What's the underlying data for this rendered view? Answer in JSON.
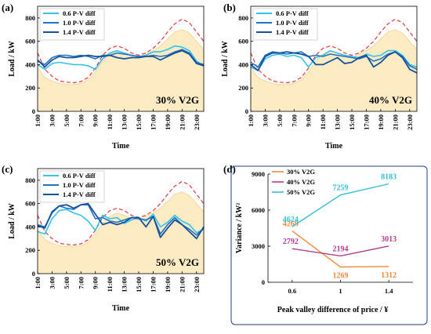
{
  "colors": {
    "series_06": "#33C3EA",
    "series_10": "#1F74C4",
    "series_14": "#17509C",
    "fill": "#FCEBC3",
    "fill_stroke": "#F2D99A",
    "dashed": "#E03A3A",
    "dark_blue_border": "#1F3F84",
    "v2g30": "#F08A3C",
    "v2g40": "#B23C93",
    "v2g50": "#33BFD8"
  },
  "chart_data": [
    {
      "panel": "(a)",
      "type": "area",
      "annotation": "30% V2G",
      "ylabel": "Load / kW",
      "xlabel": "Time",
      "ylim": [
        0,
        900
      ],
      "yticks": [
        0,
        200,
        400,
        600,
        800
      ],
      "xticks": [
        "1:00",
        "3:00",
        "5:00",
        "7:00",
        "9:00",
        "11:00",
        "13:00",
        "15:00",
        "17:00",
        "19:00",
        "21:00",
        "23:00"
      ],
      "x": [
        1,
        2,
        3,
        4,
        5,
        6,
        7,
        8,
        9,
        10,
        11,
        12,
        13,
        14,
        15,
        16,
        17,
        18,
        19,
        20,
        21,
        22,
        23,
        24
      ],
      "base_load": [
        380,
        290,
        260,
        240,
        230,
        230,
        240,
        270,
        340,
        430,
        490,
        520,
        500,
        470,
        460,
        490,
        520,
        560,
        620,
        680,
        700,
        670,
        600,
        530
      ],
      "dashed_load": [
        500,
        360,
        300,
        260,
        250,
        245,
        255,
        290,
        370,
        480,
        540,
        560,
        540,
        500,
        480,
        500,
        540,
        600,
        680,
        750,
        790,
        760,
        680,
        600
      ],
      "series": [
        {
          "name": "0.6 P-V diff",
          "values": [
            400,
            360,
            410,
            420,
            410,
            400,
            400,
            390,
            360,
            450,
            500,
            520,
            500,
            480,
            470,
            480,
            510,
            510,
            530,
            560,
            550,
            520,
            430,
            390
          ]
        },
        {
          "name": "1.0 P-V diff",
          "values": [
            430,
            400,
            460,
            480,
            480,
            470,
            480,
            470,
            450,
            480,
            480,
            500,
            490,
            480,
            470,
            470,
            480,
            470,
            480,
            510,
            530,
            500,
            420,
            400
          ]
        },
        {
          "name": "1.4 P-V diff",
          "values": [
            440,
            380,
            440,
            470,
            460,
            460,
            470,
            480,
            470,
            470,
            480,
            460,
            450,
            460,
            460,
            470,
            470,
            440,
            470,
            500,
            520,
            490,
            410,
            390
          ]
        }
      ]
    },
    {
      "panel": "(b)",
      "type": "area",
      "annotation": "40% V2G",
      "ylabel": "Load / kW",
      "xlabel": "Time",
      "ylim": [
        0,
        900
      ],
      "yticks": [
        0,
        200,
        400,
        600,
        800
      ],
      "xticks": [
        "1:00",
        "3:00",
        "5:00",
        "7:00",
        "9:00",
        "11:00",
        "13:00",
        "15:00",
        "17:00",
        "19:00",
        "21:00",
        "23:00"
      ],
      "x": [
        1,
        2,
        3,
        4,
        5,
        6,
        7,
        8,
        9,
        10,
        11,
        12,
        13,
        14,
        15,
        16,
        17,
        18,
        19,
        20,
        21,
        22,
        23,
        24
      ],
      "base_load": [
        380,
        290,
        260,
        240,
        230,
        230,
        240,
        270,
        340,
        430,
        490,
        520,
        500,
        470,
        460,
        490,
        520,
        560,
        620,
        680,
        700,
        670,
        600,
        530
      ],
      "dashed_load": [
        500,
        360,
        300,
        260,
        250,
        245,
        255,
        290,
        370,
        480,
        540,
        560,
        540,
        500,
        480,
        500,
        540,
        600,
        680,
        750,
        790,
        760,
        680,
        600
      ],
      "series": [
        {
          "name": "0.6 P-V diff",
          "values": [
            380,
            350,
            450,
            480,
            490,
            470,
            480,
            460,
            380,
            460,
            480,
            520,
            500,
            480,
            470,
            460,
            490,
            470,
            480,
            520,
            520,
            480,
            400,
            380
          ]
        },
        {
          "name": "1.0 P-V diff",
          "values": [
            420,
            380,
            480,
            510,
            500,
            490,
            500,
            510,
            470,
            480,
            470,
            490,
            480,
            470,
            460,
            450,
            470,
            430,
            450,
            490,
            510,
            470,
            390,
            360
          ]
        },
        {
          "name": "1.4 P-V diff",
          "values": [
            400,
            350,
            470,
            500,
            500,
            510,
            500,
            490,
            470,
            400,
            400,
            430,
            460,
            410,
            420,
            460,
            480,
            380,
            420,
            480,
            510,
            460,
            360,
            330
          ]
        }
      ]
    },
    {
      "panel": "(c)",
      "type": "area",
      "annotation": "50% V2G",
      "ylabel": "Load / kW",
      "xlabel": "Time",
      "ylim": [
        0,
        900
      ],
      "yticks": [
        0,
        200,
        400,
        600,
        800
      ],
      "xticks": [
        "1:00",
        "3:00",
        "5:00",
        "7:00",
        "9:00",
        "11:00",
        "13:00",
        "15:00",
        "17:00",
        "19:00",
        "21:00",
        "23:00"
      ],
      "x": [
        1,
        2,
        3,
        4,
        5,
        6,
        7,
        8,
        9,
        10,
        11,
        12,
        13,
        14,
        15,
        16,
        17,
        18,
        19,
        20,
        21,
        22,
        23,
        24
      ],
      "base_load": [
        380,
        290,
        260,
        240,
        230,
        230,
        240,
        270,
        340,
        430,
        490,
        520,
        500,
        470,
        460,
        490,
        520,
        560,
        620,
        680,
        700,
        670,
        600,
        530
      ],
      "dashed_load": [
        500,
        360,
        300,
        260,
        250,
        245,
        255,
        290,
        370,
        480,
        540,
        560,
        540,
        500,
        480,
        500,
        540,
        600,
        680,
        750,
        790,
        760,
        680,
        600
      ],
      "series": [
        {
          "name": "0.6 P-V diff",
          "values": [
            360,
            340,
            470,
            540,
            550,
            520,
            500,
            450,
            370,
            500,
            470,
            480,
            430,
            460,
            480,
            450,
            510,
            400,
            440,
            500,
            450,
            420,
            350,
            380
          ]
        },
        {
          "name": "1.0 P-V diff",
          "values": [
            420,
            400,
            520,
            580,
            560,
            550,
            590,
            590,
            470,
            480,
            450,
            440,
            460,
            480,
            470,
            460,
            490,
            340,
            420,
            480,
            420,
            380,
            330,
            390
          ]
        },
        {
          "name": "1.4 P-V diff",
          "values": [
            410,
            390,
            530,
            580,
            590,
            560,
            590,
            600,
            510,
            420,
            440,
            420,
            440,
            480,
            480,
            400,
            490,
            310,
            390,
            460,
            420,
            360,
            300,
            400
          ]
        }
      ]
    },
    {
      "panel": "(d)",
      "type": "line",
      "xlabel": "Peak valley difference of price / ¥",
      "ylabel": "Variance / kW²",
      "x": [
        0.6,
        1.0,
        1.4
      ],
      "xticks": [
        "0.6",
        "1",
        "1.4"
      ],
      "ylim": [
        0,
        9000
      ],
      "yticks": [
        0,
        3000,
        6000,
        9000
      ],
      "series": [
        {
          "name": "30% V2G",
          "values": [
            4269,
            1269,
            1312
          ],
          "labels": [
            "4269",
            "1269",
            "1312"
          ]
        },
        {
          "name": "40% V2G",
          "values": [
            2792,
            2194,
            3013
          ],
          "labels": [
            "2792",
            "2194",
            "3013"
          ]
        },
        {
          "name": "50% V2G",
          "values": [
            4624,
            7259,
            8183
          ],
          "labels": [
            "4624",
            "7259",
            "8183"
          ]
        }
      ]
    }
  ]
}
